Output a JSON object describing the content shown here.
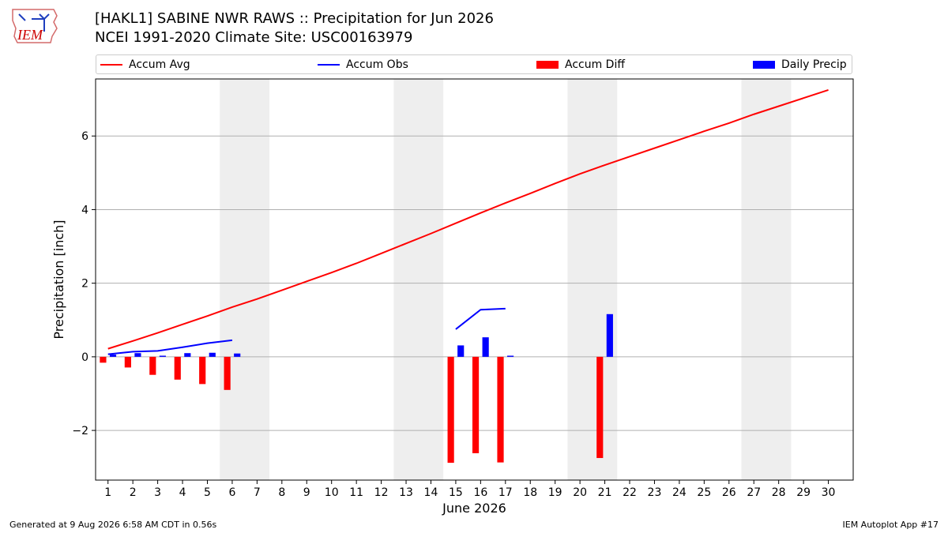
{
  "header": {
    "title_line1": "[HAKL1] SABINE NWR RAWS :: Precipitation for Jun 2026",
    "title_line2": "NCEI 1991-2020 Climate Site: USC00163979"
  },
  "logo": {
    "text": "IEM",
    "color": "#cc0000"
  },
  "legend": {
    "items": [
      {
        "label": "Accum Avg",
        "type": "line",
        "color": "#ff0000"
      },
      {
        "label": "Accum Obs",
        "type": "line",
        "color": "#0000ff"
      },
      {
        "label": "Accum Diff",
        "type": "box",
        "color": "#ff0000"
      },
      {
        "label": "Daily Precip",
        "type": "box",
        "color": "#0000ff"
      }
    ]
  },
  "footer": {
    "left": "Generated at 9 Aug 2026 6:58 AM CDT in 0.56s",
    "right": "IEM Autoplot App #17"
  },
  "chart_data": {
    "type": "bar",
    "xlabel": "June 2026",
    "ylabel": "Precipitation [inch]",
    "xlim": [
      0.5,
      31
    ],
    "ylim": [
      -3.35,
      7.55
    ],
    "yticks": [
      -2,
      0,
      2,
      4,
      6
    ],
    "ytick_labels": [
      "−2",
      "0",
      "2",
      "4",
      "6"
    ],
    "days": [
      1,
      2,
      3,
      4,
      5,
      6,
      7,
      8,
      9,
      10,
      11,
      12,
      13,
      14,
      15,
      16,
      17,
      18,
      19,
      20,
      21,
      22,
      23,
      24,
      25,
      26,
      27,
      28,
      29,
      30
    ],
    "weekend_pairs": [
      [
        6,
        7
      ],
      [
        13,
        14
      ],
      [
        20,
        21
      ],
      [
        27,
        28
      ]
    ],
    "grid": "y",
    "colors": {
      "avg": "#ff0000",
      "obs": "#0000ff",
      "diff": "#ff0000",
      "daily": "#0000ff",
      "weekend": "#eeeeee",
      "grid": "#b0b0b0"
    },
    "series": [
      {
        "name": "Accum Avg",
        "type": "line",
        "x": [
          1,
          2,
          3,
          4,
          5,
          6,
          7,
          8,
          9,
          10,
          11,
          12,
          13,
          14,
          15,
          16,
          17,
          18,
          19,
          20,
          21,
          22,
          23,
          24,
          25,
          26,
          27,
          28,
          29,
          30
        ],
        "values": [
          0.22,
          0.43,
          0.65,
          0.88,
          1.11,
          1.35,
          1.57,
          1.81,
          2.05,
          2.29,
          2.54,
          2.81,
          3.08,
          3.35,
          3.63,
          3.91,
          4.18,
          4.44,
          4.71,
          4.97,
          5.21,
          5.44,
          5.67,
          5.9,
          6.13,
          6.35,
          6.59,
          6.81,
          7.03,
          7.25
        ]
      },
      {
        "name": "Accum Obs",
        "type": "line",
        "segments": [
          {
            "x": [
              1,
              2,
              3,
              4,
              5,
              6
            ],
            "values": [
              0.07,
              0.14,
              0.16,
              0.26,
              0.37,
              0.45
            ]
          },
          {
            "x": [
              15,
              16,
              17
            ],
            "values": [
              0.75,
              1.28,
              1.31
            ]
          }
        ]
      },
      {
        "name": "Accum Diff",
        "type": "bar",
        "offset": -0.2,
        "x": [
          1,
          2,
          3,
          4,
          5,
          6,
          15,
          16,
          17,
          21
        ],
        "values": [
          -0.16,
          -0.29,
          -0.49,
          -0.62,
          -0.74,
          -0.9,
          -2.88,
          -2.62,
          -2.87,
          -2.75
        ]
      },
      {
        "name": "Daily Precip",
        "type": "bar",
        "offset": 0.2,
        "x": [
          1,
          2,
          3,
          4,
          5,
          6,
          15,
          16,
          17,
          21
        ],
        "values": [
          0.06,
          0.1,
          0.03,
          0.1,
          0.11,
          0.09,
          0.31,
          0.53,
          0.03,
          1.16
        ]
      }
    ]
  }
}
